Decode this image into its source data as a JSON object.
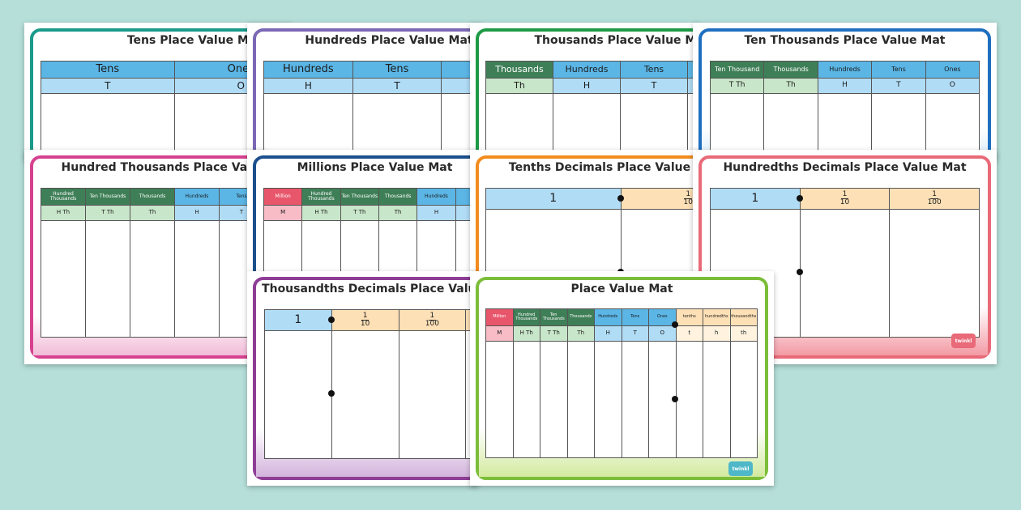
{
  "colors": {
    "background": "#b6dfd9",
    "blue_header": "#5bb6e6",
    "blue_sub": "#b1dcf6",
    "dark_green": "#3f7f57",
    "light_green": "#c8e6c9",
    "red": "#e8566b",
    "pink": "#f7bcc6",
    "peach": "#fde0b6",
    "cream": "#fff3e0"
  },
  "logo_text": "twinkl",
  "mats": [
    {
      "id": "tens",
      "title": "Tens Place Value Mat",
      "frame_color": "#1a9a8a",
      "headers": [
        "Tens",
        "Ones"
      ],
      "subs": [
        "T",
        "O"
      ]
    },
    {
      "id": "hundreds",
      "title": "Hundreds Place Value Mat",
      "frame_color": "#7b68b5",
      "headers": [
        "Hundreds",
        "Tens",
        ""
      ],
      "subs": [
        "H",
        "T",
        ""
      ]
    },
    {
      "id": "thousands",
      "title": "Thousands Place Value Mat",
      "frame_color": "#1e9a45",
      "headers": [
        "Thousands",
        "Hundreds",
        "Tens",
        ""
      ],
      "subs": [
        "Th",
        "H",
        "T",
        ""
      ]
    },
    {
      "id": "ten-thousands",
      "title": "Ten Thousands Place Value Mat",
      "frame_color": "#1f6fc0",
      "headers": [
        "Ten Thousand",
        "Thousands",
        "Hundreds",
        "Tens",
        "Ones"
      ],
      "subs": [
        "T Th",
        "Th",
        "H",
        "T",
        "O"
      ]
    },
    {
      "id": "hundred-thousands",
      "title": "Hundred Thousands Place Value Mat",
      "frame_color": "#d6418f",
      "headers": [
        "Hundred Thousands",
        "Ten Thousands",
        "Thousands",
        "Hundreds",
        "Tens"
      ],
      "subs": [
        "H Th",
        "T Th",
        "Th",
        "H",
        "T"
      ]
    },
    {
      "id": "millions",
      "title": "Millions Place Value Mat",
      "frame_color": "#1c4f8c",
      "headers": [
        "Million",
        "Hundred Thousands",
        "Ten Thousands",
        "Thousands",
        "Hundreds",
        ""
      ],
      "subs": [
        "M",
        "H Th",
        "T Th",
        "Th",
        "H",
        ""
      ]
    },
    {
      "id": "tenths",
      "title": "Tenths Decimals Place Value Mat",
      "frame_color": "#f28c1e",
      "whole": "1",
      "fractions": [
        {
          "num": "1",
          "den": "10"
        }
      ]
    },
    {
      "id": "hundredths",
      "title": "Hundredths Decimals Place Value Mat",
      "frame_color": "#e96a78",
      "whole": "1",
      "fractions": [
        {
          "num": "1",
          "den": "10"
        },
        {
          "num": "1",
          "den": "100"
        }
      ]
    },
    {
      "id": "thousandths",
      "title": "Thousandths Decimals Place Value Mat",
      "frame_color": "#8e3d96",
      "whole": "1",
      "fractions": [
        {
          "num": "1",
          "den": "10"
        },
        {
          "num": "1",
          "den": "100"
        },
        {
          "num": "",
          "den": ""
        }
      ]
    },
    {
      "id": "place-value",
      "title": "Place Value Mat",
      "frame_color": "#7cbd3a",
      "headers": [
        "Million",
        "Hundred Thousands",
        "Ten Thousands",
        "Thousands",
        "Hundreds",
        "Tens",
        "Ones",
        "tenths",
        "hundredths",
        "thousandths"
      ],
      "subs": [
        "M",
        "H Th",
        "T Th",
        "Th",
        "H",
        "T",
        "O",
        "t",
        "h",
        "th"
      ]
    }
  ]
}
